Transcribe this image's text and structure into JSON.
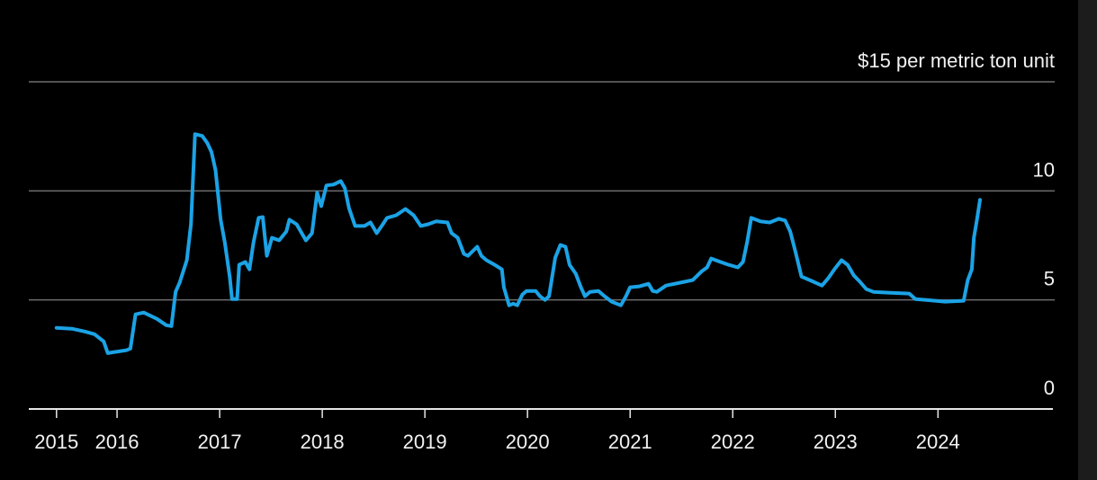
{
  "chart_data": {
    "type": "line",
    "x": [
      2015.41,
      2015.56,
      2015.69,
      2015.78,
      2015.87,
      2015.91,
      2015.96,
      2016.09,
      2016.13,
      2016.18,
      2016.26,
      2016.39,
      2016.48,
      2016.53,
      2016.57,
      2016.61,
      2016.68,
      2016.72,
      2016.76,
      2016.83,
      2016.88,
      2016.92,
      2016.96,
      2017.01,
      2017.05,
      2017.1,
      2017.12,
      2017.17,
      2017.19,
      2017.25,
      2017.29,
      2017.33,
      2017.38,
      2017.42,
      2017.46,
      2017.51,
      2017.58,
      2017.65,
      2017.68,
      2017.75,
      2017.84,
      2017.9,
      2017.95,
      2017.99,
      2018.04,
      2018.11,
      2018.18,
      2018.22,
      2018.26,
      2018.32,
      2018.41,
      2018.47,
      2018.53,
      2018.59,
      2018.63,
      2018.72,
      2018.81,
      2018.89,
      2018.96,
      2019.03,
      2019.11,
      2019.22,
      2019.26,
      2019.32,
      2019.38,
      2019.42,
      2019.51,
      2019.55,
      2019.6,
      2019.68,
      2019.75,
      2019.77,
      2019.82,
      2019.86,
      2019.9,
      2019.95,
      2019.99,
      2020.08,
      2020.12,
      2020.17,
      2020.21,
      2020.27,
      2020.32,
      2020.37,
      2020.41,
      2020.47,
      2020.52,
      2020.56,
      2020.61,
      2020.69,
      2020.75,
      2020.82,
      2020.91,
      2020.96,
      2021.0,
      2021.09,
      2021.18,
      2021.22,
      2021.26,
      2021.35,
      2021.53,
      2021.61,
      2021.7,
      2021.75,
      2021.79,
      2021.88,
      2021.96,
      2022.05,
      2022.1,
      2022.14,
      2022.18,
      2022.27,
      2022.36,
      2022.45,
      2022.51,
      2022.56,
      2022.61,
      2022.67,
      2022.75,
      2022.87,
      2022.93,
      2022.99,
      2023.06,
      2023.12,
      2023.18,
      2023.24,
      2023.3,
      2023.37,
      2023.54,
      2023.72,
      2023.78,
      2023.89,
      2024.07,
      2024.25,
      2024.29,
      2024.33,
      2024.35,
      2024.38,
      2024.41
    ],
    "series": [
      {
        "color": "#1ba3e6",
        "values": [
          3.72,
          3.68,
          3.55,
          3.43,
          3.1,
          2.56,
          2.6,
          2.69,
          2.77,
          4.34,
          4.42,
          4.13,
          3.84,
          3.8,
          5.37,
          5.79,
          6.82,
          8.47,
          12.6,
          12.52,
          12.19,
          11.78,
          10.95,
          8.68,
          7.64,
          5.99,
          5.04,
          5.04,
          6.61,
          6.74,
          6.4,
          7.64,
          8.76,
          8.8,
          7.02,
          7.85,
          7.73,
          8.14,
          8.68,
          8.47,
          7.73,
          8.06,
          9.92,
          9.3,
          10.25,
          10.29,
          10.45,
          10.12,
          9.21,
          8.39,
          8.39,
          8.55,
          8.06,
          8.47,
          8.76,
          8.88,
          9.17,
          8.88,
          8.39,
          8.47,
          8.6,
          8.55,
          8.06,
          7.85,
          7.11,
          7.02,
          7.44,
          7.02,
          6.82,
          6.61,
          6.4,
          5.58,
          4.75,
          4.83,
          4.75,
          5.25,
          5.41,
          5.41,
          5.17,
          5.0,
          5.17,
          6.94,
          7.52,
          7.44,
          6.61,
          6.2,
          5.58,
          5.17,
          5.37,
          5.41,
          5.17,
          4.92,
          4.75,
          5.17,
          5.58,
          5.62,
          5.74,
          5.41,
          5.37,
          5.66,
          5.83,
          5.91,
          6.32,
          6.49,
          6.9,
          6.74,
          6.61,
          6.49,
          6.74,
          7.64,
          8.76,
          8.6,
          8.55,
          8.72,
          8.64,
          8.14,
          7.23,
          6.07,
          5.91,
          5.66,
          5.99,
          6.4,
          6.82,
          6.61,
          6.12,
          5.83,
          5.5,
          5.37,
          5.33,
          5.29,
          5.04,
          5.0,
          4.92,
          4.96,
          5.91,
          6.4,
          7.85,
          8.68,
          9.59
        ]
      }
    ],
    "xlim": [
      2015.14,
      2025.12
    ],
    "xticks": [
      {
        "value": 2015.41,
        "label": "2015"
      },
      2016,
      2017,
      2018,
      2019,
      2020,
      2021,
      2022,
      2023,
      2024
    ],
    "ylim": [
      0,
      15
    ],
    "yticks": [
      0,
      5,
      10,
      {
        "value": 15,
        "label": "$15 per metric ton unit"
      }
    ],
    "grid": true
  }
}
